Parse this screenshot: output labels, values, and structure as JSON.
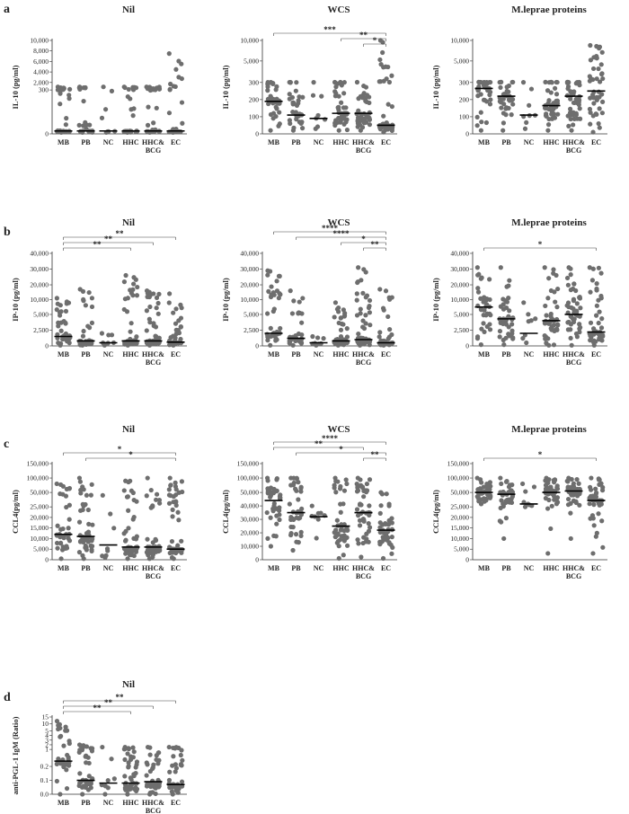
{
  "figure": {
    "categories": [
      "MB",
      "PB",
      "NC",
      "HHC",
      "HHC& BCG",
      "EC"
    ],
    "point_color": "#6e6e6e",
    "median_color": "#000000"
  },
  "rows": [
    {
      "label": "a",
      "ylabel": "IL-10 (pg/ml)"
    },
    {
      "label": "b",
      "ylabel": "IP-10 (pg/ml)"
    },
    {
      "label": "c",
      "ylabel": "CCL4(pg/ml)"
    },
    {
      "label": "d",
      "ylabel": "anti-PGL-1 IgM (Ratio)"
    }
  ],
  "chart_data": [
    {
      "type": "scatter",
      "row": "a",
      "title": "Nil",
      "ylabel": "IL-10 (pg/ml)",
      "categories": [
        "MB",
        "PB",
        "NC",
        "HHC",
        "HHC& BCG",
        "EC"
      ],
      "axis_ticks": [
        "0",
        "300",
        "2,000",
        "4,000",
        "6,000",
        "8,000",
        "10,000"
      ],
      "medians": [
        20,
        20,
        20,
        20,
        20,
        20
      ],
      "ranges": [
        [
          10,
          1000
        ],
        [
          10,
          1000
        ],
        [
          10,
          1000
        ],
        [
          10,
          1000
        ],
        [
          10,
          1000
        ],
        [
          10,
          7500
        ]
      ],
      "n_points": [
        28,
        26,
        8,
        30,
        30,
        26
      ],
      "significance": []
    },
    {
      "type": "scatter",
      "row": "a",
      "title": "WCS",
      "ylabel": "IL-10 (pg/ml)",
      "categories": [
        "MB",
        "PB",
        "NC",
        "HHC",
        "HHC& BCG",
        "EC"
      ],
      "axis_ticks": [
        "0",
        "100",
        "200",
        "300",
        "5,000",
        "10,000"
      ],
      "medians": [
        190,
        110,
        90,
        120,
        120,
        50
      ],
      "ranges": [
        [
          20,
          350
        ],
        [
          20,
          350
        ],
        [
          30,
          330
        ],
        [
          20,
          360
        ],
        [
          20,
          360
        ],
        [
          10,
          10500
        ]
      ],
      "n_points": [
        36,
        36,
        8,
        44,
        44,
        44
      ],
      "significance": [
        {
          "from": "MB",
          "to": "EC",
          "label": "***"
        },
        {
          "from": "HHC",
          "to": "EC",
          "label": "**"
        },
        {
          "from": "HHC& BCG",
          "to": "EC",
          "label": "*"
        }
      ]
    },
    {
      "type": "scatter",
      "row": "a",
      "title": "M.leprae proteins",
      "ylabel": "IL-10 (pg/ml)",
      "categories": [
        "MB",
        "PB",
        "NC",
        "HHC",
        "HHC& BCG",
        "EC"
      ],
      "axis_ticks": [
        "0",
        "100",
        "200",
        "300",
        "5,000",
        "10,000"
      ],
      "medians": [
        265,
        220,
        110,
        165,
        220,
        250
      ],
      "ranges": [
        [
          20,
          380
        ],
        [
          20,
          380
        ],
        [
          30,
          330
        ],
        [
          20,
          380
        ],
        [
          20,
          380
        ],
        [
          10,
          8800
        ]
      ],
      "n_points": [
        36,
        36,
        8,
        44,
        44,
        44
      ],
      "significance": []
    },
    {
      "type": "scatter",
      "row": "b",
      "title": "Nil",
      "ylabel": "IP-10 (pg/ml)",
      "categories": [
        "MB",
        "PB",
        "NC",
        "HHC",
        "HHC& BCG",
        "EC"
      ],
      "axis_ticks": [
        "0",
        "2,500",
        "5,000",
        "10,000",
        "20,000",
        "30,000",
        "40,000"
      ],
      "medians": [
        1500,
        800,
        500,
        800,
        800,
        600
      ],
      "ranges": [
        [
          100,
          11000
        ],
        [
          100,
          17000
        ],
        [
          100,
          2000
        ],
        [
          100,
          26000
        ],
        [
          100,
          16000
        ],
        [
          100,
          14000
        ]
      ],
      "n_points": [
        40,
        40,
        8,
        48,
        48,
        40
      ],
      "significance": [
        {
          "from": "MB",
          "to": "EC",
          "label": "**"
        },
        {
          "from": "MB",
          "to": "HHC& BCG",
          "label": "**"
        },
        {
          "from": "MB",
          "to": "HHC",
          "label": "**"
        }
      ]
    },
    {
      "type": "scatter",
      "row": "b",
      "title": "WCS",
      "ylabel": "IP-10 (pg/ml)",
      "categories": [
        "MB",
        "PB",
        "NC",
        "HHC",
        "HHC& BCG",
        "EC"
      ],
      "axis_ticks": [
        "0",
        "2,500",
        "5,000",
        "10,000",
        "20,000",
        "30,000",
        "40,000"
      ],
      "medians": [
        2000,
        1200,
        500,
        800,
        1000,
        500
      ],
      "ranges": [
        [
          100,
          29000
        ],
        [
          100,
          16000
        ],
        [
          100,
          1500
        ],
        [
          100,
          9000
        ],
        [
          100,
          31000
        ],
        [
          100,
          17000
        ]
      ],
      "n_points": [
        40,
        40,
        8,
        48,
        48,
        40
      ],
      "significance": [
        {
          "from": "MB",
          "to": "EC",
          "label": "****"
        },
        {
          "from": "PB",
          "to": "EC",
          "label": "****"
        },
        {
          "from": "HHC",
          "to": "EC",
          "label": "*"
        },
        {
          "from": "HHC& BCG",
          "to": "EC",
          "label": "**"
        }
      ]
    },
    {
      "type": "scatter",
      "row": "b",
      "title": "M.leprae proteins",
      "ylabel": "IP-10 (pg/ml)",
      "categories": [
        "MB",
        "PB",
        "NC",
        "HHC",
        "HHC& BCG",
        "EC"
      ],
      "axis_ticks": [
        "0",
        "2,500",
        "5,000",
        "10,000",
        "20,000",
        "30,000",
        "40,000"
      ],
      "medians": [
        7500,
        4300,
        2000,
        4000,
        5000,
        2200
      ],
      "ranges": [
        [
          200,
          31000
        ],
        [
          200,
          31000
        ],
        [
          500,
          9000
        ],
        [
          100,
          31000
        ],
        [
          100,
          31000
        ],
        [
          100,
          31000
        ]
      ],
      "n_points": [
        36,
        40,
        8,
        48,
        48,
        44
      ],
      "significance": [
        {
          "from": "MB",
          "to": "EC",
          "label": "*"
        }
      ]
    },
    {
      "type": "scatter",
      "row": "c",
      "title": "Nil",
      "ylabel": "CCL4(pg/ml)",
      "categories": [
        "MB",
        "PB",
        "NC",
        "HHC",
        "HHC& BCG",
        "EC"
      ],
      "axis_ticks": [
        "0",
        "5,000",
        "10,000",
        "15,000",
        "20,000",
        "25,000",
        "50,000",
        "100,000",
        "150,000"
      ],
      "medians": [
        12000,
        11000,
        7000,
        6000,
        6000,
        5000
      ],
      "ranges": [
        [
          500,
          80000
        ],
        [
          500,
          100000
        ],
        [
          1000,
          45000
        ],
        [
          500,
          90000
        ],
        [
          500,
          100000
        ],
        [
          500,
          100000
        ]
      ],
      "n_points": [
        40,
        48,
        8,
        48,
        48,
        48
      ],
      "significance": [
        {
          "from": "MB",
          "to": "EC",
          "label": "*"
        },
        {
          "from": "PB",
          "to": "EC",
          "label": "*"
        }
      ]
    },
    {
      "type": "scatter",
      "row": "c",
      "title": "WCS",
      "ylabel": "CCL4(pg/ml)",
      "categories": [
        "MB",
        "PB",
        "NC",
        "HHC",
        "HHC& BCG",
        "EC"
      ],
      "axis_ticks": [
        "0",
        "10,000",
        "20,000",
        "30,000",
        "40,000",
        "50,000",
        "100,000",
        "150,000"
      ],
      "medians": [
        44000,
        35000,
        32000,
        25000,
        35000,
        22000
      ],
      "ranges": [
        [
          10000,
          100000
        ],
        [
          7000,
          100000
        ],
        [
          16000,
          40000
        ],
        [
          1000,
          100000
        ],
        [
          2000,
          100000
        ],
        [
          1000,
          50000
        ]
      ],
      "n_points": [
        40,
        40,
        8,
        44,
        48,
        44
      ],
      "significance": [
        {
          "from": "MB",
          "to": "EC",
          "label": "****"
        },
        {
          "from": "MB",
          "to": "HHC& BCG",
          "label": "**"
        },
        {
          "from": "PB",
          "to": "EC",
          "label": "*"
        },
        {
          "from": "HHC& BCG",
          "to": "EC",
          "label": "**"
        }
      ]
    },
    {
      "type": "scatter",
      "row": "c",
      "title": "M.leprae proteins",
      "ylabel": "CCL4(pg/ml)",
      "categories": [
        "MB",
        "PB",
        "NC",
        "HHC",
        "HHC& BCG",
        "EC"
      ],
      "axis_ticks": [
        "0",
        "5,000",
        "10,000",
        "15,000",
        "20,000",
        "25,000",
        "50,000",
        "100,000",
        "150,000"
      ],
      "medians": [
        50000,
        47000,
        30000,
        50000,
        55000,
        36000
      ],
      "ranges": [
        [
          30000,
          100000
        ],
        [
          10000,
          100000
        ],
        [
          25000,
          80000
        ],
        [
          3000,
          100000
        ],
        [
          10000,
          100000
        ],
        [
          3000,
          100000
        ]
      ],
      "n_points": [
        40,
        40,
        8,
        44,
        48,
        44
      ],
      "significance": [
        {
          "from": "MB",
          "to": "EC",
          "label": "*"
        }
      ]
    },
    {
      "type": "scatter",
      "row": "d",
      "title": "Nil",
      "ylabel": "anti-PGL-1 IgM (Ratio)",
      "categories": [
        "MB",
        "PB",
        "NC",
        "HHC",
        "HHC& BCG",
        "EC"
      ],
      "axis_ticks": [
        "0.0",
        "0.1",
        "0.2",
        "1",
        "2",
        "3",
        "4",
        "5",
        "10",
        "15"
      ],
      "medians": [
        0.45,
        0.1,
        0.08,
        0.08,
        0.09,
        0.07
      ],
      "ranges": [
        [
          0,
          12
        ],
        [
          0,
          2
        ],
        [
          0,
          1.5
        ],
        [
          0,
          1.5
        ],
        [
          0,
          1.5
        ],
        [
          0,
          1.5
        ]
      ],
      "n_points": [
        40,
        40,
        8,
        48,
        48,
        44
      ],
      "significance": [
        {
          "from": "MB",
          "to": "EC",
          "label": "**"
        },
        {
          "from": "MB",
          "to": "HHC& BCG",
          "label": "**"
        },
        {
          "from": "MB",
          "to": "HHC",
          "label": "**"
        }
      ]
    }
  ]
}
